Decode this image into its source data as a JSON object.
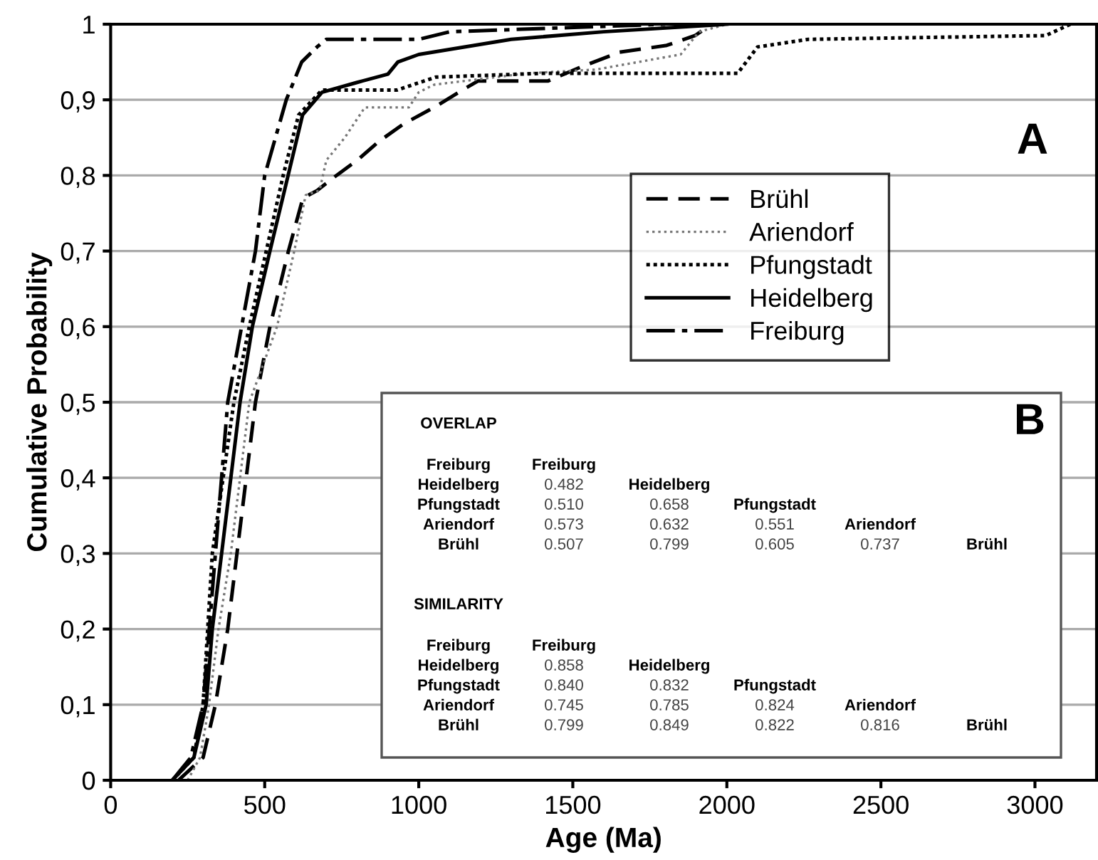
{
  "chart_data": {
    "type": "line",
    "xlabel": "Age (Ma)",
    "ylabel": "Cumulative Probability",
    "xlim": [
      0,
      3200
    ],
    "xticks": [
      0,
      500,
      1000,
      1500,
      2000,
      2500,
      3000
    ],
    "ylim": [
      0,
      1
    ],
    "yticks": [
      0,
      {
        "value": 0.1,
        "label": "0,1"
      },
      {
        "value": 0.2,
        "label": "0,2"
      },
      {
        "value": 0.3,
        "label": "0,3"
      },
      {
        "value": 0.4,
        "label": "0,4"
      },
      {
        "value": 0.5,
        "label": "0,5"
      },
      {
        "value": 0.6,
        "label": "0,6"
      },
      {
        "value": 0.7,
        "label": "0,7"
      },
      {
        "value": 0.8,
        "label": "0,8"
      },
      {
        "value": 0.9,
        "label": "0,9"
      },
      1
    ],
    "grid": "y",
    "legend": "top right",
    "marker": "none",
    "series": [
      {
        "name": "Brühl",
        "color": "#000000",
        "line_style": "dashed",
        "x": [
          220,
          300,
          340,
          380,
          410,
          440,
          470,
          517,
          577,
          624,
          670,
          733,
          800,
          871,
          950,
          1050,
          1150,
          1193,
          1420,
          1530,
          1652,
          1805,
          1897,
          1950
        ],
        "values": [
          0,
          0.03,
          0.1,
          0.2,
          0.3,
          0.4,
          0.5,
          0.6,
          0.7,
          0.77,
          0.78,
          0.8,
          0.82,
          0.845,
          0.868,
          0.89,
          0.915,
          0.925,
          0.925,
          0.944,
          0.963,
          0.972,
          0.985,
          1
        ]
      },
      {
        "name": "Ariendorf",
        "color": "#777777",
        "line_style": "dotted",
        "x": [
          250,
          290,
          318,
          350,
          390,
          450,
          540,
          596,
          633,
          678,
          700,
          760,
          825,
          968,
          1000,
          1050,
          1350,
          1575,
          1850,
          1910,
          2000
        ],
        "values": [
          0,
          0.03,
          0.096,
          0.2,
          0.3,
          0.5,
          0.6,
          0.7,
          0.774,
          0.78,
          0.82,
          0.85,
          0.89,
          0.89,
          0.91,
          0.92,
          0.935,
          0.94,
          0.96,
          0.99,
          1
        ]
      },
      {
        "name": "Pfungstadt",
        "color": "#000000",
        "line_style": "dotted",
        "x": [
          200,
          270,
          300,
          330,
          400,
          450,
          505,
          560,
          610,
          686,
          930,
          1055,
          1400,
          1565,
          2035,
          2100,
          2265,
          3035,
          3115
        ],
        "values": [
          0,
          0.03,
          0.1,
          0.3,
          0.5,
          0.6,
          0.7,
          0.8,
          0.88,
          0.913,
          0.913,
          0.93,
          0.935,
          0.935,
          0.935,
          0.97,
          0.98,
          0.985,
          1
        ]
      },
      {
        "name": "Heidelberg",
        "color": "#000000",
        "line_style": "solid",
        "x": [
          200,
          270,
          310,
          330,
          365,
          420,
          460,
          517,
          576,
          623,
          686,
          800,
          900,
          932,
          1000,
          1300,
          1600,
          2000
        ],
        "values": [
          0,
          0.03,
          0.1,
          0.2,
          0.316,
          0.5,
          0.6,
          0.7,
          0.8,
          0.88,
          0.91,
          0.923,
          0.934,
          0.95,
          0.96,
          0.98,
          0.99,
          1
        ]
      },
      {
        "name": "Freiburg",
        "color": "#000000",
        "line_style": "dashdot",
        "x": [
          200,
          260,
          300,
          340,
          380,
          470,
          500,
          570,
          620,
          670,
          700,
          1000,
          1100,
          1800
        ],
        "values": [
          0,
          0.03,
          0.1,
          0.3,
          0.5,
          0.7,
          0.8,
          0.9,
          0.95,
          0.97,
          0.98,
          0.98,
          0.99,
          1
        ]
      }
    ],
    "annotations": [
      "A",
      "B",
      "OVERLAP",
      "Freiburg",
      "Freiburg",
      "Heidelberg",
      "0.482",
      "Heidelberg",
      "Pfungstadt",
      "0.510",
      "0.658",
      "Pfungstadt",
      "Ariendorf",
      "0.573",
      "0.632",
      "0.551",
      "Ariendorf",
      "Brühl",
      "0.507",
      "0.799",
      "0.605",
      "0.737",
      "Brühl",
      "SIMILARITY",
      "Freiburg",
      "Freiburg",
      "Heidelberg",
      "0.858",
      "Heidelberg",
      "Pfungstadt",
      "0.840",
      "0.832",
      "Pfungstadt",
      "Ariendorf",
      "0.745",
      "0.785",
      "0.824",
      "Ariendorf",
      "Brühl",
      "0.799",
      "0.849",
      "0.822",
      "0.816",
      "Brühl"
    ]
  }
}
